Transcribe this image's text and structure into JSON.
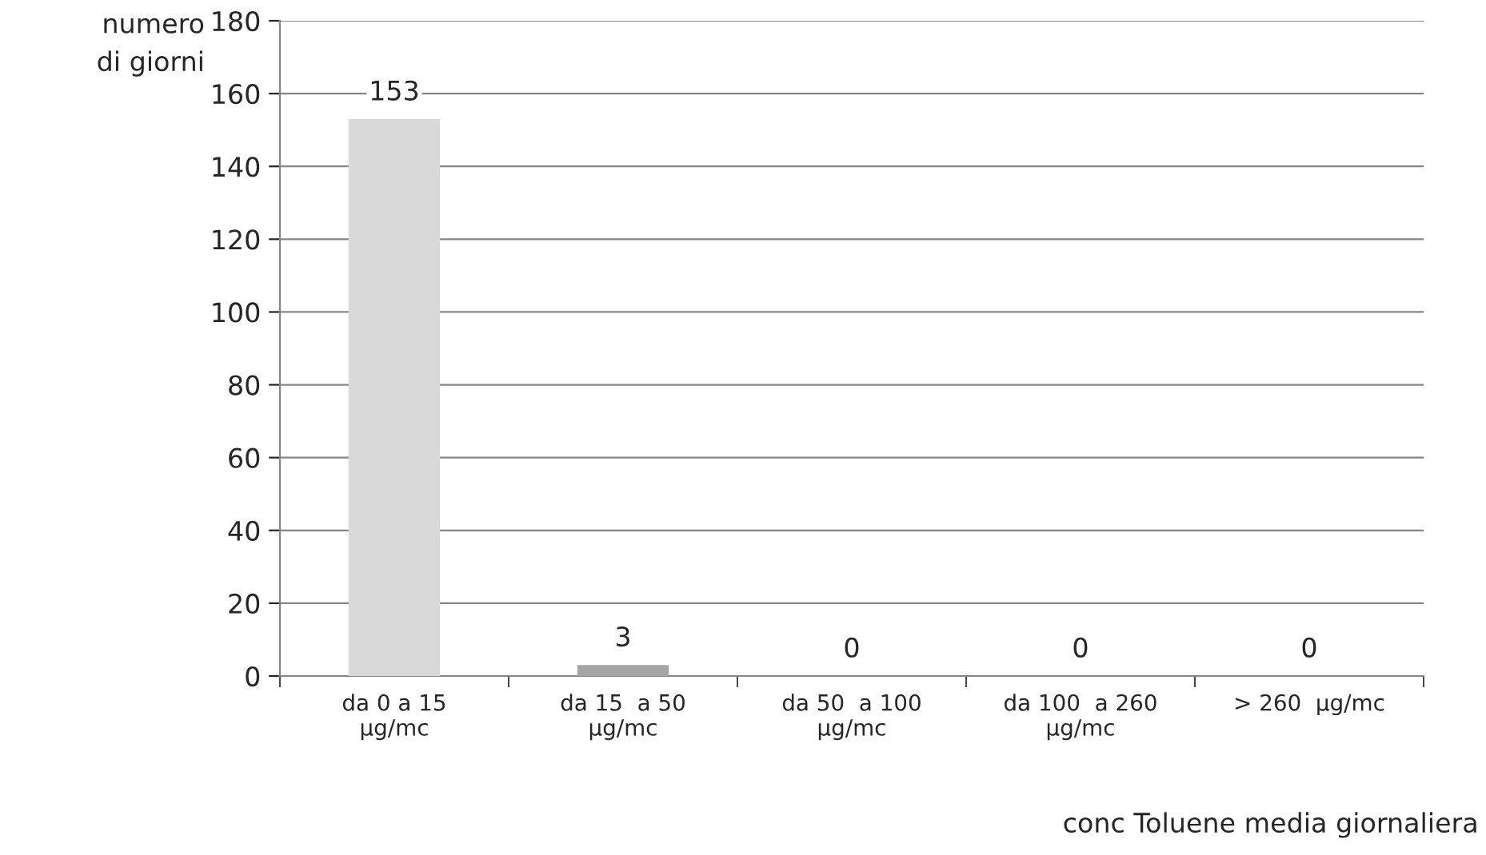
{
  "chart_data": {
    "type": "bar",
    "categories": [
      "da 0 a 15\nµg/mc",
      "da 15  a 50\nµg/mc",
      "da 50  a 100\nµg/mc",
      "da 100  a 260\nµg/mc",
      "> 260  µg/mc"
    ],
    "values": [
      153,
      3,
      0,
      0,
      0
    ],
    "colors": [
      "#d9d9d9",
      "#a6a6a6",
      null,
      null,
      null
    ],
    "ylabel": "numero\ndi giorni",
    "xlabel": "conc Toluene media giornaliera",
    "ylim": [
      0,
      180
    ],
    "yticks": [
      0,
      20,
      40,
      60,
      80,
      100,
      120,
      140,
      160,
      180
    ],
    "grid": "y",
    "data_labels": true
  }
}
